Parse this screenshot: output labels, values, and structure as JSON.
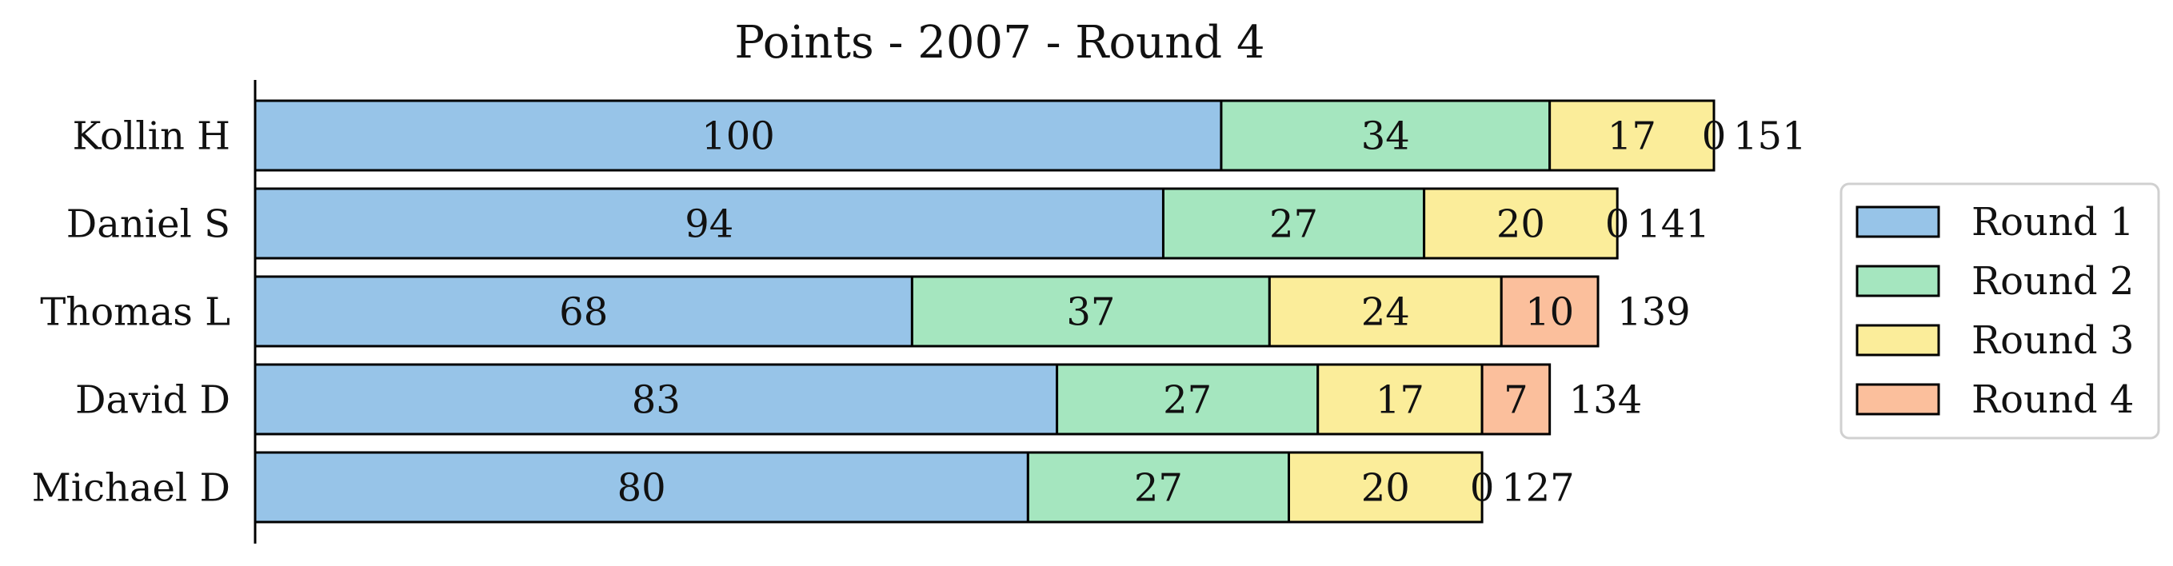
{
  "chart_data": {
    "type": "bar",
    "orientation": "horizontal",
    "stacked": true,
    "title": "Points - 2007 - Round 4",
    "xlabel": "",
    "ylabel": "",
    "xlim": [
      0,
      151
    ],
    "categories": [
      "Kollin H",
      "Daniel S",
      "Thomas L",
      "David D",
      "Michael D"
    ],
    "series": [
      {
        "name": "Round 1",
        "color": "#97c4e8",
        "values": [
          100,
          94,
          68,
          83,
          80
        ]
      },
      {
        "name": "Round 2",
        "color": "#a5e6bf",
        "values": [
          34,
          27,
          37,
          27,
          27
        ]
      },
      {
        "name": "Round 3",
        "color": "#fbed9a",
        "values": [
          17,
          20,
          24,
          17,
          20
        ]
      },
      {
        "name": "Round 4",
        "color": "#fbbf9c",
        "values": [
          0,
          0,
          10,
          7,
          0
        ]
      }
    ],
    "totals": [
      151,
      141,
      139,
      134,
      127
    ],
    "grid": false,
    "legend_position": "right"
  }
}
